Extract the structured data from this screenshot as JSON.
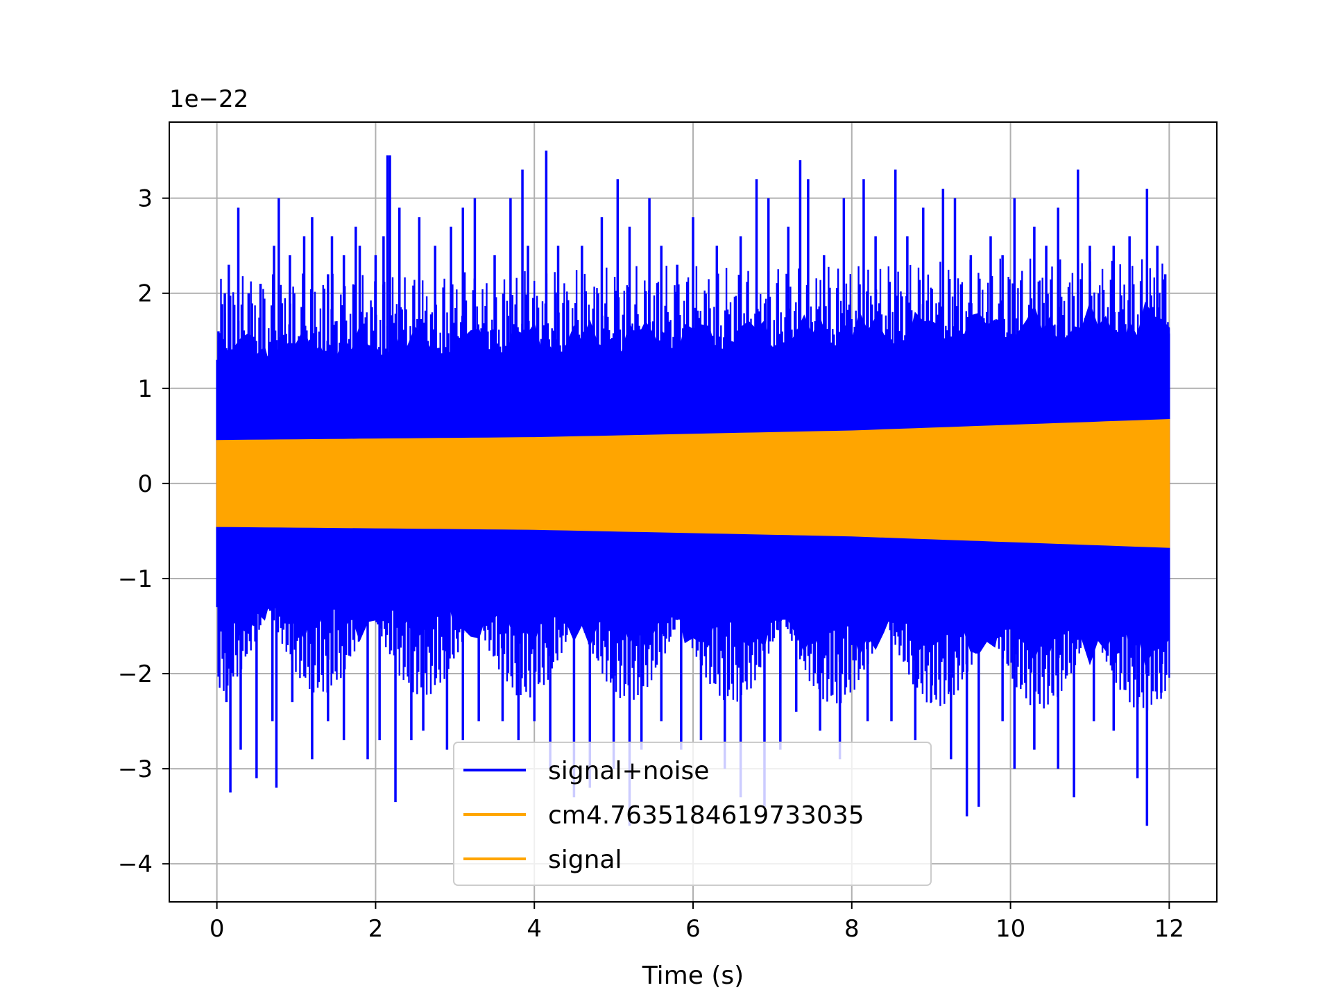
{
  "chart_data": {
    "type": "line",
    "title": "",
    "xlabel": "Time (s)",
    "ylabel": "",
    "y_offset_text": "1e−22",
    "xlim": [
      -0.6,
      12.6
    ],
    "ylim": [
      -4.4,
      3.8
    ],
    "xticks": [
      0,
      2,
      4,
      6,
      8,
      10,
      12
    ],
    "xtick_labels": [
      "0",
      "2",
      "4",
      "6",
      "8",
      "10",
      "12"
    ],
    "yticks": [
      -4,
      -3,
      -2,
      -1,
      0,
      1,
      2,
      3
    ],
    "ytick_labels": [
      "−4",
      "−3",
      "−2",
      "−1",
      "0",
      "1",
      "2",
      "3"
    ],
    "grid": true,
    "legend_position": "lower-center",
    "series": [
      {
        "name": "signal+noise",
        "color": "#0000ff",
        "x_range": [
          0,
          12
        ],
        "core_band": [
          [
            0,
            1.0
          ],
          [
            6,
            1.1
          ],
          [
            12,
            1.2
          ]
        ],
        "spikes_positive": [
          [
            0.02,
            1.6
          ],
          [
            0.1,
            2.0
          ],
          [
            0.15,
            2.3
          ],
          [
            0.27,
            2.9
          ],
          [
            0.4,
            2.0
          ],
          [
            0.55,
            2.1
          ],
          [
            0.72,
            2.5
          ],
          [
            0.78,
            3.0
          ],
          [
            0.92,
            2.4
          ],
          [
            1.1,
            2.6
          ],
          [
            1.2,
            2.8
          ],
          [
            1.4,
            2.2
          ],
          [
            1.45,
            2.6
          ],
          [
            1.6,
            2.4
          ],
          [
            1.75,
            2.7
          ],
          [
            1.8,
            2.5
          ],
          [
            2.0,
            2.4
          ],
          [
            2.1,
            2.6
          ],
          [
            2.15,
            3.45
          ],
          [
            2.18,
            3.45
          ],
          [
            2.3,
            2.9
          ],
          [
            2.55,
            2.8
          ],
          [
            2.75,
            2.5
          ],
          [
            2.95,
            2.7
          ],
          [
            3.1,
            2.9
          ],
          [
            3.25,
            3.0
          ],
          [
            3.5,
            2.4
          ],
          [
            3.7,
            3.0
          ],
          [
            3.85,
            3.3
          ],
          [
            3.92,
            2.5
          ],
          [
            4.15,
            3.5
          ],
          [
            4.3,
            2.5
          ],
          [
            4.6,
            2.5
          ],
          [
            4.85,
            2.8
          ],
          [
            5.05,
            3.2
          ],
          [
            5.2,
            2.7
          ],
          [
            5.45,
            3.0
          ],
          [
            5.6,
            2.5
          ],
          [
            5.8,
            2.3
          ],
          [
            6.0,
            2.8
          ],
          [
            6.3,
            2.5
          ],
          [
            6.6,
            2.6
          ],
          [
            6.8,
            3.2
          ],
          [
            6.95,
            3.0
          ],
          [
            7.2,
            2.7
          ],
          [
            7.35,
            3.4
          ],
          [
            7.45,
            3.2
          ],
          [
            7.65,
            2.4
          ],
          [
            7.9,
            3.0
          ],
          [
            8.15,
            3.2
          ],
          [
            8.3,
            2.6
          ],
          [
            8.55,
            3.3
          ],
          [
            8.7,
            2.6
          ],
          [
            8.9,
            2.9
          ],
          [
            9.15,
            3.1
          ],
          [
            9.3,
            3.0
          ],
          [
            9.5,
            2.4
          ],
          [
            9.75,
            2.6
          ],
          [
            9.9,
            2.4
          ],
          [
            10.05,
            3.0
          ],
          [
            10.3,
            2.7
          ],
          [
            10.45,
            2.5
          ],
          [
            10.6,
            2.9
          ],
          [
            10.85,
            3.3
          ],
          [
            11.0,
            2.5
          ],
          [
            11.3,
            2.5
          ],
          [
            11.5,
            2.6
          ],
          [
            11.72,
            3.1
          ],
          [
            11.85,
            2.5
          ],
          [
            11.95,
            2.2
          ]
        ],
        "spikes_negative": [
          [
            0.05,
            -1.5
          ],
          [
            0.12,
            -2.3
          ],
          [
            0.17,
            -3.25
          ],
          [
            0.3,
            -2.8
          ],
          [
            0.5,
            -3.1
          ],
          [
            0.7,
            -2.5
          ],
          [
            0.75,
            -3.2
          ],
          [
            0.95,
            -2.3
          ],
          [
            1.2,
            -2.9
          ],
          [
            1.4,
            -2.5
          ],
          [
            1.6,
            -2.7
          ],
          [
            1.9,
            -2.9
          ],
          [
            2.05,
            -2.7
          ],
          [
            2.25,
            -3.35
          ],
          [
            2.45,
            -2.7
          ],
          [
            2.6,
            -2.6
          ],
          [
            2.9,
            -2.8
          ],
          [
            3.1,
            -2.7
          ],
          [
            3.3,
            -2.5
          ],
          [
            3.6,
            -2.5
          ],
          [
            3.8,
            -2.7
          ],
          [
            4.0,
            -2.5
          ],
          [
            4.2,
            -3.0
          ],
          [
            4.5,
            -3.3
          ],
          [
            4.7,
            -3.2
          ],
          [
            5.0,
            -3.0
          ],
          [
            5.2,
            -3.6
          ],
          [
            5.35,
            -2.8
          ],
          [
            5.6,
            -2.5
          ],
          [
            5.85,
            -2.8
          ],
          [
            6.1,
            -2.7
          ],
          [
            6.4,
            -3.0
          ],
          [
            6.6,
            -3.3
          ],
          [
            6.9,
            -3.4
          ],
          [
            7.1,
            -2.8
          ],
          [
            7.3,
            -2.4
          ],
          [
            7.6,
            -2.6
          ],
          [
            7.85,
            -2.9
          ],
          [
            8.2,
            -2.5
          ],
          [
            8.5,
            -2.5
          ],
          [
            8.8,
            -2.7
          ],
          [
            9.0,
            -2.3
          ],
          [
            9.25,
            -2.9
          ],
          [
            9.45,
            -3.5
          ],
          [
            9.6,
            -3.4
          ],
          [
            9.9,
            -2.5
          ],
          [
            10.05,
            -3.0
          ],
          [
            10.3,
            -2.8
          ],
          [
            10.6,
            -3.0
          ],
          [
            10.8,
            -3.3
          ],
          [
            11.05,
            -2.5
          ],
          [
            11.3,
            -2.6
          ],
          [
            11.6,
            -3.1
          ],
          [
            11.72,
            -3.6
          ],
          [
            11.9,
            -2.2
          ]
        ]
      },
      {
        "name": "cm4.7635184619733035",
        "color": "#ffa500",
        "envelope": [
          [
            0,
            0.45
          ],
          [
            4,
            0.48
          ],
          [
            8,
            0.55
          ],
          [
            12,
            0.67
          ]
        ]
      },
      {
        "name": "signal",
        "color": "#ffa500",
        "envelope": [
          [
            0,
            0.45
          ],
          [
            4,
            0.48
          ],
          [
            8,
            0.55
          ],
          [
            12,
            0.67
          ]
        ]
      }
    ],
    "colors": {
      "grid": "#b0b0b0",
      "axes": "#000000",
      "legend_border": "#cccccc"
    }
  }
}
